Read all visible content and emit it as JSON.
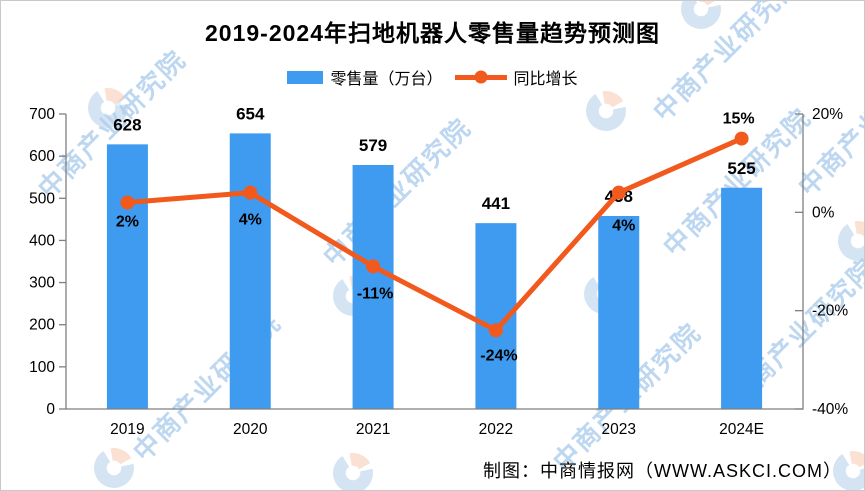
{
  "title": "2019-2024年扫地机器人零售量趋势预测图",
  "legend": {
    "items": [
      {
        "label": "零售量（万台）",
        "swatch": "bar"
      },
      {
        "label": "同比增长",
        "swatch": "line"
      }
    ]
  },
  "footer": {
    "credit": "制图：中商情报网（WWW.ASKCI.COM）"
  },
  "watermark": {
    "text": "中商产业研究院",
    "color": "#BDD7F0"
  },
  "colors": {
    "bar": "#3E9BF0",
    "line": "#F2591D",
    "axis": "#7F7F7F",
    "label": "#000000"
  },
  "chart_data": {
    "type": "bar+line",
    "title": "2019-2024年扫地机器人零售量趋势预测图",
    "categories": [
      "2019",
      "2020",
      "2021",
      "2022",
      "2023",
      "2024E"
    ],
    "series": [
      {
        "name": "零售量（万台）",
        "type": "bar",
        "axis": "left",
        "values": [
          628,
          654,
          579,
          441,
          458,
          525
        ],
        "labels": [
          "628",
          "654",
          "579",
          "441",
          "458",
          "525"
        ]
      },
      {
        "name": "同比增长",
        "type": "line",
        "axis": "right",
        "values": [
          2,
          4,
          -11,
          -24,
          4,
          15
        ],
        "labels": [
          "2%",
          "4%",
          "-11%",
          "-24%",
          "4%",
          "15%"
        ]
      }
    ],
    "axes": {
      "left": {
        "min": 0,
        "max": 700,
        "step": 100,
        "tick_labels": [
          "0",
          "100",
          "200",
          "300",
          "400",
          "500",
          "600",
          "700"
        ]
      },
      "right": {
        "min": -40,
        "max": 20,
        "step": 20,
        "tick_labels": [
          "-40%",
          "-20%",
          "0%",
          "20%"
        ]
      }
    },
    "grid": false,
    "legend_position": "top"
  }
}
